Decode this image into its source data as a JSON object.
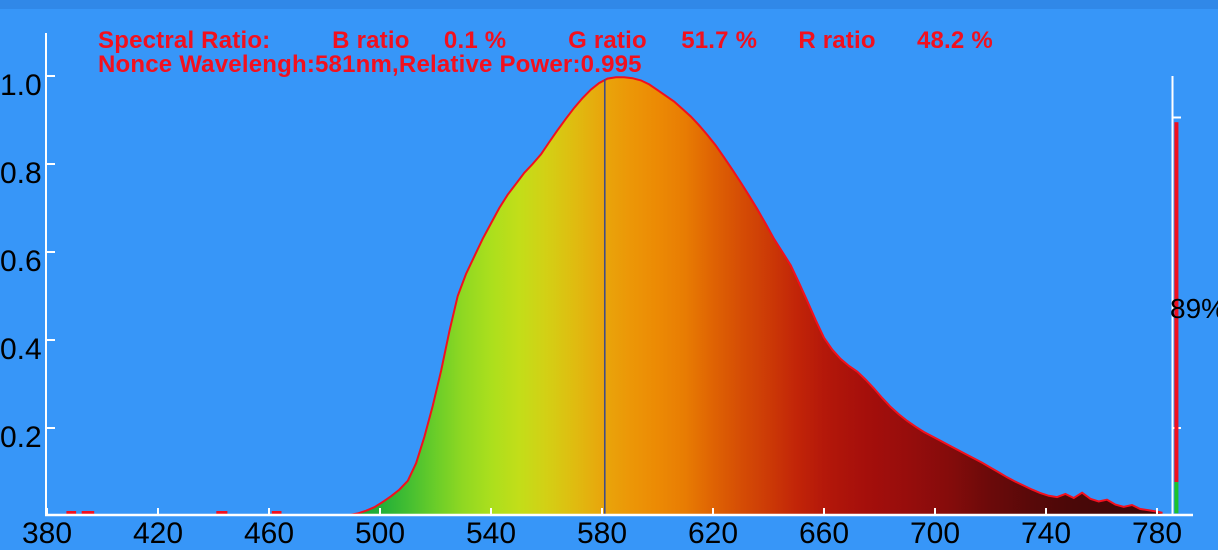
{
  "header": {
    "line1": "Spectral Ratio:         B ratio     0.1 %         G ratio     51.7 %      R ratio      48.2 %",
    "line2": "Nonce Wavelengh:581nm,Relative Power:0.995"
  },
  "right_indicator": {
    "label": "89%"
  },
  "colors": {
    "background": "#3796F8",
    "header_text": "#F2101E",
    "curve_outline": "#F2101E",
    "axis": "#FFFFFF",
    "tick_label": "#000000",
    "peak_marker": "#3F4E86",
    "bar_red": "#F2101E",
    "bar_green": "#1DC32C"
  },
  "chart_data": {
    "type": "area",
    "title": "",
    "xlabel": "",
    "ylabel": "",
    "xlim": [
      380,
      790
    ],
    "ylim": [
      0,
      1.05
    ],
    "grid": false,
    "x_ticks": [
      {
        "value": 380,
        "label": "380"
      },
      {
        "value": 420,
        "label": "420"
      },
      {
        "value": 460,
        "label": "460"
      },
      {
        "value": 500,
        "label": "500"
      },
      {
        "value": 540,
        "label": "540"
      },
      {
        "value": 580,
        "label": "580"
      },
      {
        "value": 620,
        "label": "620"
      },
      {
        "value": 660,
        "label": "660"
      },
      {
        "value": 700,
        "label": "700"
      },
      {
        "value": 740,
        "label": "740"
      },
      {
        "value": 780,
        "label": "780"
      }
    ],
    "y_ticks": [
      {
        "value": 1.0,
        "label": "1.0"
      },
      {
        "value": 0.8,
        "label": "0.8"
      },
      {
        "value": 0.6,
        "label": "0.6"
      },
      {
        "value": 0.4,
        "label": "0.4"
      },
      {
        "value": 0.2,
        "label": "0.2"
      }
    ],
    "peak": {
      "wavelength_nm": 581,
      "relative_power": 0.995
    },
    "ratios_percent": {
      "B": 0.1,
      "G": 51.7,
      "R": 48.2
    },
    "right_bar": {
      "label": "89%",
      "x_nm": 787,
      "red_top": 0.895,
      "red_bottom": 0.077,
      "green_top": 0.077,
      "green_bottom": 0.006
    },
    "baseline_blips_nm": [
      [
        387,
        3.5
      ],
      [
        392.5,
        4.5
      ],
      [
        441,
        4
      ],
      [
        461,
        3.5
      ]
    ],
    "series": [
      {
        "name": "relative spectral power",
        "points": [
          [
            489,
            0.002
          ],
          [
            492,
            0.006
          ],
          [
            495,
            0.012
          ],
          [
            498,
            0.02
          ],
          [
            501,
            0.032
          ],
          [
            504,
            0.045
          ],
          [
            507,
            0.06
          ],
          [
            510,
            0.08
          ],
          [
            513,
            0.12
          ],
          [
            516,
            0.18
          ],
          [
            519,
            0.25
          ],
          [
            522,
            0.33
          ],
          [
            525,
            0.42
          ],
          [
            528,
            0.5
          ],
          [
            531,
            0.55
          ],
          [
            534,
            0.59
          ],
          [
            537,
            0.63
          ],
          [
            540,
            0.665
          ],
          [
            543,
            0.7
          ],
          [
            546,
            0.73
          ],
          [
            549,
            0.755
          ],
          [
            552,
            0.78
          ],
          [
            555,
            0.8
          ],
          [
            558,
            0.822
          ],
          [
            561,
            0.85
          ],
          [
            564,
            0.877
          ],
          [
            567,
            0.903
          ],
          [
            570,
            0.928
          ],
          [
            573,
            0.95
          ],
          [
            576,
            0.969
          ],
          [
            579,
            0.984
          ],
          [
            582,
            0.994
          ],
          [
            585,
            0.997
          ],
          [
            588,
            0.997
          ],
          [
            591,
            0.995
          ],
          [
            594,
            0.99
          ],
          [
            597,
            0.981
          ],
          [
            600,
            0.968
          ],
          [
            603,
            0.955
          ],
          [
            606,
            0.942
          ],
          [
            609,
            0.925
          ],
          [
            612,
            0.908
          ],
          [
            615,
            0.888
          ],
          [
            618,
            0.866
          ],
          [
            621,
            0.842
          ],
          [
            624,
            0.815
          ],
          [
            627,
            0.787
          ],
          [
            630,
            0.758
          ],
          [
            633,
            0.728
          ],
          [
            636,
            0.697
          ],
          [
            639,
            0.664
          ],
          [
            642,
            0.63
          ],
          [
            645,
            0.6
          ],
          [
            648,
            0.57
          ],
          [
            651,
            0.53
          ],
          [
            654,
            0.488
          ],
          [
            657,
            0.445
          ],
          [
            660,
            0.405
          ],
          [
            663,
            0.378
          ],
          [
            666,
            0.357
          ],
          [
            669,
            0.341
          ],
          [
            672,
            0.328
          ],
          [
            675,
            0.31
          ],
          [
            678,
            0.29
          ],
          [
            681,
            0.268
          ],
          [
            684,
            0.248
          ],
          [
            687,
            0.231
          ],
          [
            690,
            0.216
          ],
          [
            693,
            0.203
          ],
          [
            696,
            0.191
          ],
          [
            699,
            0.181
          ],
          [
            702,
            0.171
          ],
          [
            705,
            0.161
          ],
          [
            708,
            0.151
          ],
          [
            711,
            0.141
          ],
          [
            714,
            0.131
          ],
          [
            717,
            0.121
          ],
          [
            720,
            0.11
          ],
          [
            723,
            0.099
          ],
          [
            726,
            0.088
          ],
          [
            729,
            0.078
          ],
          [
            732,
            0.069
          ],
          [
            735,
            0.06
          ],
          [
            738,
            0.052
          ],
          [
            741,
            0.046
          ],
          [
            744,
            0.043
          ],
          [
            747,
            0.05
          ],
          [
            750,
            0.041
          ],
          [
            753,
            0.053
          ],
          [
            756,
            0.039
          ],
          [
            759,
            0.033
          ],
          [
            762,
            0.037
          ],
          [
            765,
            0.026
          ],
          [
            768,
            0.021
          ],
          [
            771,
            0.025
          ],
          [
            774,
            0.016
          ],
          [
            777,
            0.013
          ],
          [
            780,
            0.01
          ],
          [
            782,
            0.007
          ]
        ]
      }
    ],
    "wavelength_gradient": [
      [
        490,
        "#12A43A"
      ],
      [
        500,
        "#22AF38"
      ],
      [
        510,
        "#43BE32"
      ],
      [
        520,
        "#6ACD29"
      ],
      [
        530,
        "#90D822"
      ],
      [
        540,
        "#ABDF1D"
      ],
      [
        550,
        "#C2DE19"
      ],
      [
        560,
        "#D3D015"
      ],
      [
        570,
        "#DFBC10"
      ],
      [
        580,
        "#E8A60C"
      ],
      [
        590,
        "#EC9707"
      ],
      [
        600,
        "#EC8A04"
      ],
      [
        610,
        "#E87C03"
      ],
      [
        620,
        "#DF6303"
      ],
      [
        630,
        "#D54D05"
      ],
      [
        640,
        "#CC3A06"
      ],
      [
        650,
        "#C22508"
      ],
      [
        660,
        "#B4180A"
      ],
      [
        675,
        "#A50F0B"
      ],
      [
        690,
        "#970D0C"
      ],
      [
        705,
        "#850C0B"
      ],
      [
        720,
        "#6B0A0A"
      ],
      [
        735,
        "#580909"
      ],
      [
        750,
        "#4A0808"
      ],
      [
        765,
        "#420808"
      ],
      [
        782,
        "#3A0707"
      ]
    ]
  }
}
